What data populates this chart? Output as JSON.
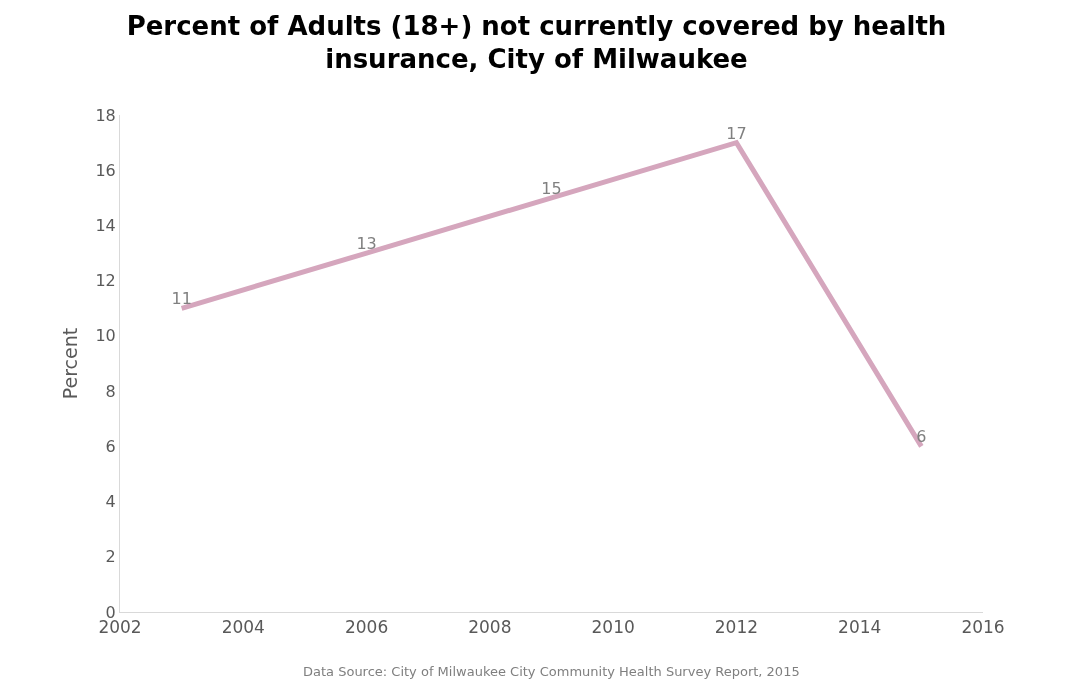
{
  "chart_data": {
    "type": "line",
    "title": "Percent of Adults (18+) not currently covered by health insurance, City of Milwaukee",
    "ylabel": "Percent",
    "x": [
      2003,
      2006,
      2009,
      2012,
      2015
    ],
    "series": [
      {
        "color": "#d5a6bd",
        "values": [
          11,
          13,
          15,
          17,
          6
        ]
      }
    ],
    "xlim": [
      2002,
      2016
    ],
    "xticks": [
      2002,
      2004,
      2006,
      2008,
      2010,
      2012,
      2014,
      2016
    ],
    "ylim": [
      0,
      18
    ],
    "yticks": [
      0,
      2,
      4,
      6,
      8,
      10,
      12,
      14,
      16,
      18
    ],
    "marker": "none",
    "line_style": "solid",
    "data_labels": true,
    "annotations": [
      "Data Source: City of Milwaukee City Community Health Survey Report, 2015"
    ]
  }
}
